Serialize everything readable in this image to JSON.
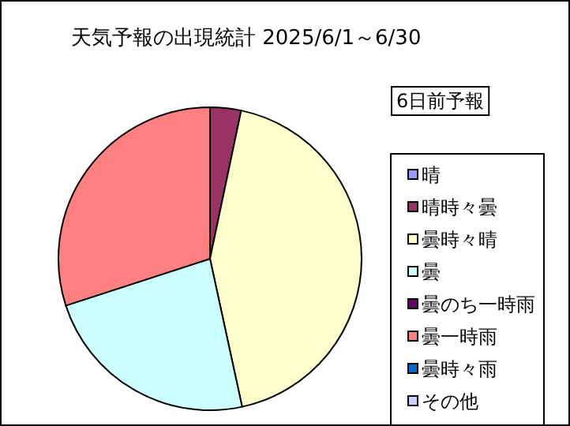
{
  "chart_data": {
    "type": "pie",
    "title": "天気予報の出現統計 2025/6/1～6/30",
    "subtitle": "6日前予報",
    "categories": [
      "晴",
      "晴時々曇",
      "曇時々晴",
      "曇",
      "曇のち一時雨",
      "曇一時雨",
      "曇時々雨",
      "その他"
    ],
    "values": [
      0,
      3.3,
      43.3,
      23.4,
      0,
      30,
      0,
      0
    ],
    "colors": [
      "#9999ff",
      "#993366",
      "#ffffcc",
      "#ccffff",
      "#660066",
      "#ff8080",
      "#0066cc",
      "#ccccff"
    ],
    "legend": "right"
  }
}
